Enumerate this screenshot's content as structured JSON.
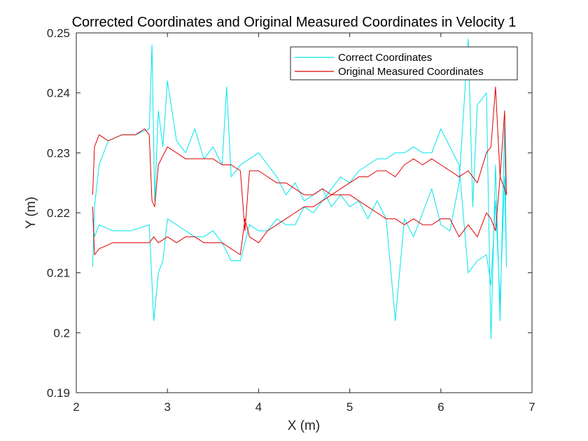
{
  "chart_data": {
    "type": "line",
    "title": "Corrected Coordinates and Original Measured Coordinates in Velocity 1",
    "xlabel": "X (m)",
    "ylabel": "Y (m)",
    "xlim": [
      2,
      7
    ],
    "ylim": [
      0.19,
      0.25
    ],
    "xticks": [
      "2",
      "3",
      "4",
      "5",
      "6",
      "7"
    ],
    "yticks": [
      "0.19",
      "0.2",
      "0.21",
      "0.22",
      "0.23",
      "0.24",
      "0.25"
    ],
    "grid": false,
    "legend": "top-right",
    "series": [
      {
        "name": "Correct Coordinates",
        "color": "#00e5ee",
        "x": [
          2.18,
          2.2,
          2.25,
          2.35,
          2.5,
          2.65,
          2.8,
          2.83,
          2.86,
          2.9,
          2.95,
          3.0,
          3.1,
          3.2,
          3.3,
          3.4,
          3.5,
          3.6,
          3.65,
          3.7,
          3.8,
          3.9,
          4.0,
          4.1,
          4.2,
          4.3,
          4.4,
          4.5,
          4.6,
          4.7,
          4.8,
          4.9,
          5.0,
          5.1,
          5.2,
          5.3,
          5.4,
          5.5,
          5.6,
          5.7,
          5.8,
          5.9,
          6.0,
          6.1,
          6.2,
          6.3,
          6.35,
          6.4,
          6.5,
          6.55,
          6.6,
          6.65,
          6.7,
          6.72,
          6.7,
          6.65,
          6.6,
          6.55,
          6.5,
          6.4,
          6.3,
          6.2,
          6.1,
          6.0,
          5.9,
          5.8,
          5.7,
          5.6,
          5.5,
          5.4,
          5.3,
          5.2,
          5.1,
          5.0,
          4.9,
          4.8,
          4.7,
          4.6,
          4.5,
          4.4,
          4.3,
          4.2,
          4.1,
          4.0,
          3.9,
          3.8,
          3.7,
          3.6,
          3.5,
          3.4,
          3.3,
          3.2,
          3.1,
          3.0,
          2.95,
          2.9,
          2.85,
          2.8,
          2.6,
          2.4,
          2.25,
          2.2,
          2.18
        ],
        "y": [
          0.211,
          0.221,
          0.228,
          0.232,
          0.233,
          0.233,
          0.234,
          0.248,
          0.222,
          0.237,
          0.231,
          0.242,
          0.232,
          0.23,
          0.234,
          0.229,
          0.231,
          0.228,
          0.241,
          0.226,
          0.228,
          0.229,
          0.23,
          0.228,
          0.226,
          0.223,
          0.225,
          0.222,
          0.223,
          0.224,
          0.221,
          0.223,
          0.221,
          0.222,
          0.219,
          0.222,
          0.219,
          0.202,
          0.219,
          0.216,
          0.22,
          0.224,
          0.218,
          0.217,
          0.225,
          0.249,
          0.221,
          0.238,
          0.24,
          0.199,
          0.228,
          0.202,
          0.235,
          0.211,
          0.226,
          0.205,
          0.222,
          0.208,
          0.213,
          0.212,
          0.21,
          0.228,
          0.231,
          0.234,
          0.23,
          0.23,
          0.231,
          0.23,
          0.23,
          0.229,
          0.229,
          0.228,
          0.227,
          0.225,
          0.226,
          0.224,
          0.222,
          0.22,
          0.221,
          0.218,
          0.218,
          0.219,
          0.217,
          0.217,
          0.218,
          0.212,
          0.212,
          0.215,
          0.217,
          0.216,
          0.216,
          0.217,
          0.218,
          0.219,
          0.212,
          0.21,
          0.202,
          0.218,
          0.217,
          0.217,
          0.218,
          0.216,
          0.219
        ]
      },
      {
        "name": "Original Measured Coordinates",
        "color": "#e00000",
        "x": [
          2.18,
          2.2,
          2.25,
          2.35,
          2.5,
          2.65,
          2.75,
          2.8,
          2.83,
          2.86,
          2.9,
          3.0,
          3.1,
          3.2,
          3.3,
          3.4,
          3.5,
          3.6,
          3.7,
          3.8,
          3.85,
          3.9,
          4.0,
          4.1,
          4.2,
          4.3,
          4.4,
          4.5,
          4.6,
          4.7,
          4.8,
          4.9,
          5.0,
          5.1,
          5.2,
          5.3,
          5.4,
          5.5,
          5.6,
          5.7,
          5.8,
          5.9,
          6.0,
          6.1,
          6.2,
          6.3,
          6.4,
          6.5,
          6.55,
          6.6,
          6.65,
          6.7,
          6.72,
          6.7,
          6.65,
          6.6,
          6.55,
          6.5,
          6.4,
          6.3,
          6.2,
          6.1,
          6.0,
          5.9,
          5.8,
          5.7,
          5.6,
          5.5,
          5.4,
          5.3,
          5.2,
          5.1,
          5.0,
          4.9,
          4.8,
          4.7,
          4.6,
          4.5,
          4.4,
          4.3,
          4.2,
          4.1,
          4.0,
          3.9,
          3.85,
          3.8,
          3.7,
          3.6,
          3.5,
          3.4,
          3.3,
          3.2,
          3.1,
          3.0,
          2.9,
          2.85,
          2.8,
          2.6,
          2.4,
          2.25,
          2.2,
          2.18
        ],
        "y": [
          0.223,
          0.231,
          0.233,
          0.232,
          0.233,
          0.233,
          0.234,
          0.233,
          0.222,
          0.221,
          0.228,
          0.231,
          0.23,
          0.229,
          0.229,
          0.229,
          0.229,
          0.228,
          0.228,
          0.227,
          0.217,
          0.227,
          0.227,
          0.226,
          0.225,
          0.225,
          0.224,
          0.223,
          0.223,
          0.224,
          0.223,
          0.224,
          0.225,
          0.226,
          0.226,
          0.227,
          0.227,
          0.226,
          0.228,
          0.229,
          0.228,
          0.229,
          0.228,
          0.227,
          0.226,
          0.227,
          0.225,
          0.23,
          0.231,
          0.241,
          0.226,
          0.237,
          0.223,
          0.224,
          0.226,
          0.217,
          0.219,
          0.22,
          0.216,
          0.218,
          0.216,
          0.219,
          0.219,
          0.218,
          0.218,
          0.219,
          0.218,
          0.219,
          0.219,
          0.22,
          0.221,
          0.222,
          0.223,
          0.223,
          0.223,
          0.222,
          0.221,
          0.221,
          0.22,
          0.219,
          0.218,
          0.217,
          0.215,
          0.216,
          0.219,
          0.213,
          0.214,
          0.215,
          0.215,
          0.215,
          0.216,
          0.216,
          0.215,
          0.216,
          0.215,
          0.216,
          0.215,
          0.215,
          0.215,
          0.214,
          0.213,
          0.221
        ]
      }
    ]
  }
}
